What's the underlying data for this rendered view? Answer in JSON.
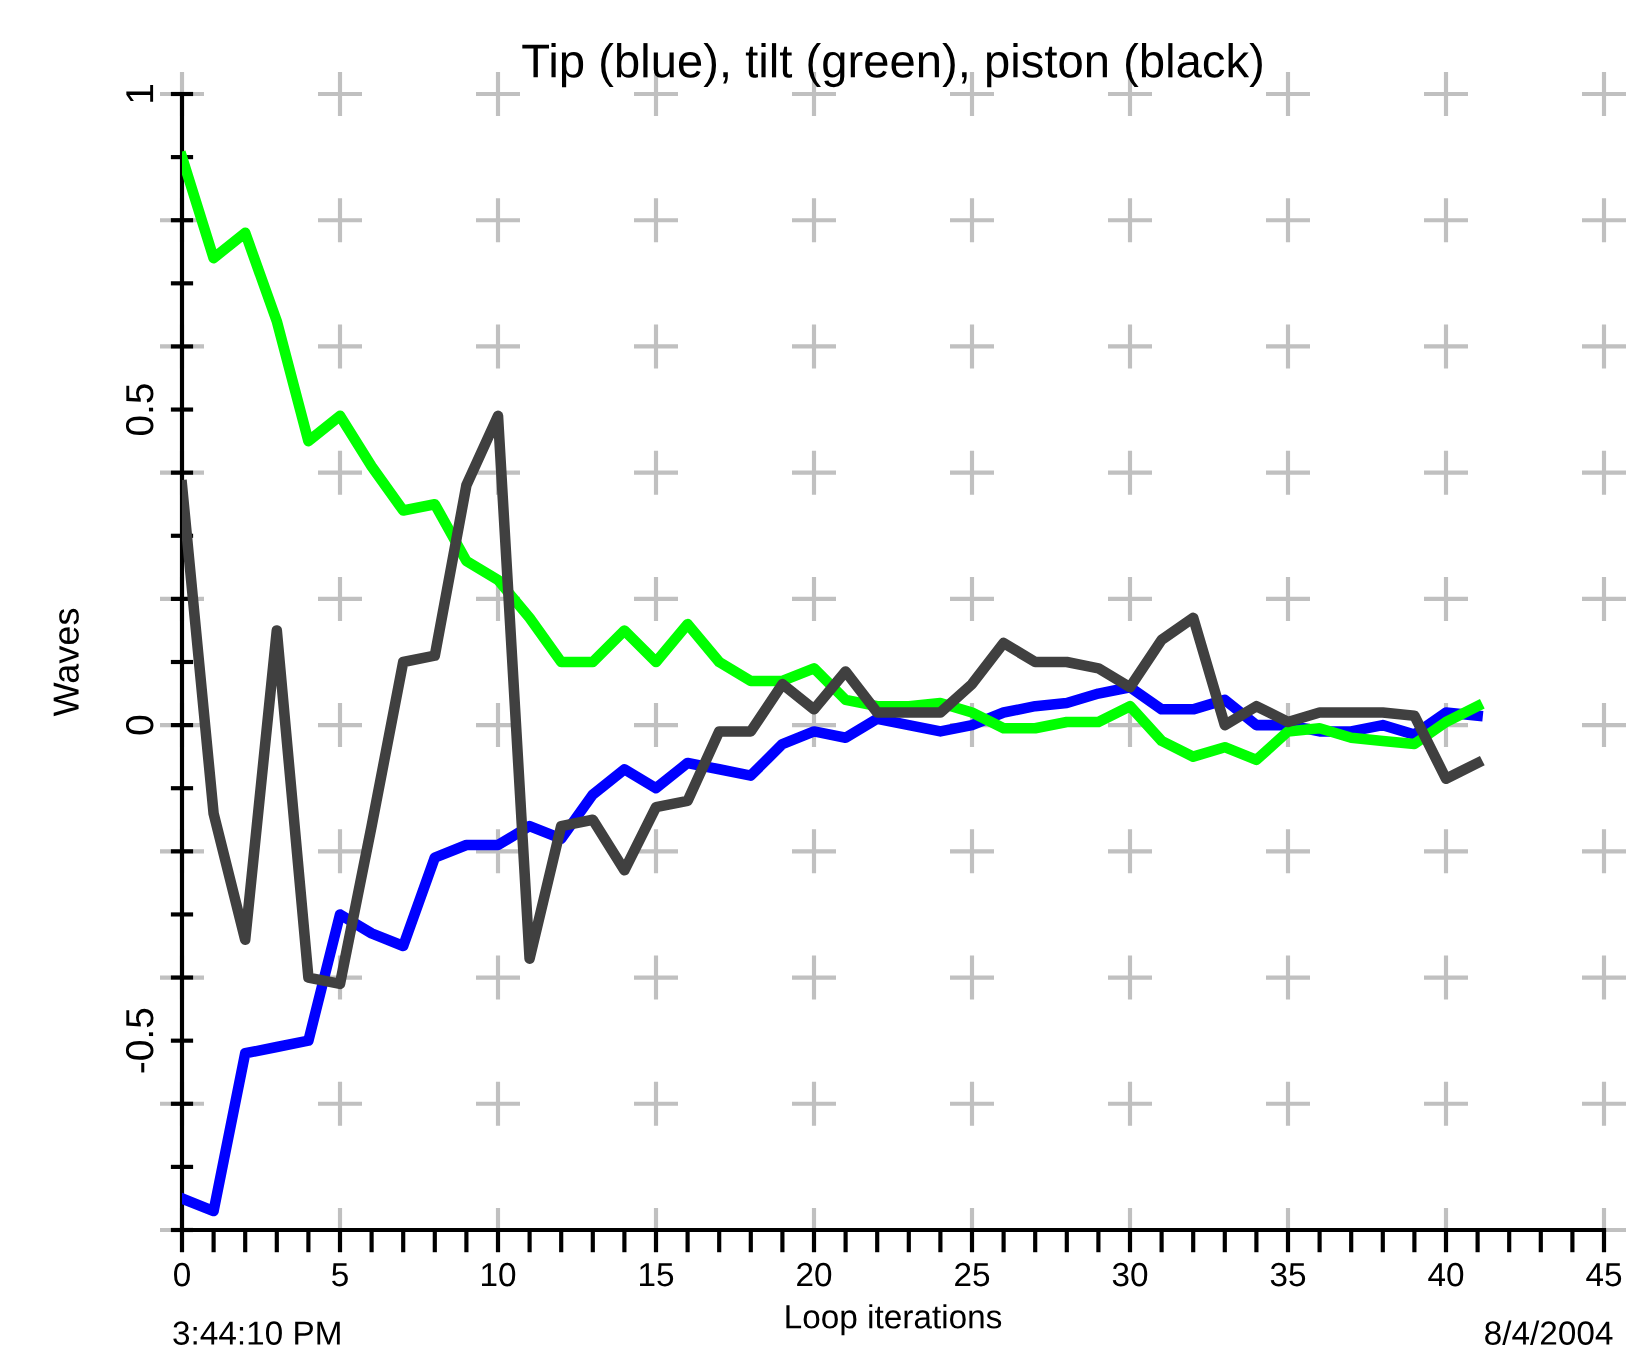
{
  "chart_data": {
    "type": "line",
    "title": "Tip (blue), tilt (green), piston (black)",
    "xlabel": "Loop iterations",
    "ylabel": "Waves",
    "annotations": [
      "3:44:10 PM",
      "8/4/2004"
    ],
    "x": [
      0,
      1,
      2,
      3,
      4,
      5,
      6,
      7,
      8,
      9,
      10,
      11,
      12,
      13,
      14,
      15,
      16,
      17,
      18,
      19,
      20,
      21,
      22,
      23,
      24,
      25,
      26,
      27,
      28,
      29,
      30,
      31,
      32,
      33,
      34,
      35,
      36,
      37,
      38,
      39,
      40,
      41
    ],
    "series": [
      {
        "color": "#0000ff",
        "values": [
          -0.75,
          -0.77,
          -0.52,
          -0.51,
          -0.5,
          -0.3,
          -0.33,
          -0.35,
          -0.21,
          -0.19,
          -0.19,
          -0.16,
          -0.18,
          -0.11,
          -0.07,
          -0.1,
          -0.06,
          -0.07,
          -0.08,
          -0.03,
          -0.01,
          -0.02,
          0.01,
          0.0,
          -0.01,
          0.0,
          0.02,
          0.03,
          0.035,
          0.05,
          0.06,
          0.025,
          0.025,
          0.04,
          0.0,
          0.0,
          -0.01,
          -0.01,
          0.0,
          -0.015,
          0.02,
          0.015
        ]
      },
      {
        "color": "#00ff00",
        "values": [
          0.9,
          0.74,
          0.78,
          0.64,
          0.45,
          0.49,
          0.41,
          0.34,
          0.35,
          0.26,
          0.23,
          0.17,
          0.1,
          0.1,
          0.15,
          0.1,
          0.16,
          0.1,
          0.07,
          0.07,
          0.09,
          0.04,
          0.03,
          0.03,
          0.035,
          0.02,
          -0.005,
          -0.005,
          0.005,
          0.005,
          0.03,
          -0.025,
          -0.05,
          -0.035,
          -0.055,
          -0.01,
          -0.005,
          -0.02,
          -0.025,
          -0.03,
          0.005,
          0.03
        ]
      },
      {
        "color": "#404040",
        "values": [
          0.38,
          -0.14,
          -0.34,
          0.15,
          -0.4,
          -0.41,
          -0.16,
          0.1,
          0.11,
          0.38,
          0.49,
          -0.37,
          -0.16,
          -0.15,
          -0.23,
          -0.13,
          -0.12,
          -0.01,
          -0.01,
          0.065,
          0.025,
          0.085,
          0.02,
          0.02,
          0.02,
          0.065,
          0.13,
          0.1,
          0.1,
          0.09,
          0.06,
          0.135,
          0.17,
          0.0,
          0.03,
          0.005,
          0.02,
          0.02,
          0.02,
          0.015,
          -0.085,
          -0.06
        ]
      }
    ],
    "xlim": [
      0,
      45
    ],
    "xticks": [
      0,
      {
        "value": 1,
        "label": null
      },
      {
        "value": 2,
        "label": null
      },
      {
        "value": 3,
        "label": null
      },
      {
        "value": 4,
        "label": null
      },
      5,
      {
        "value": 6,
        "label": null
      },
      {
        "value": 7,
        "label": null
      },
      {
        "value": 8,
        "label": null
      },
      {
        "value": 9,
        "label": null
      },
      10,
      {
        "value": 11,
        "label": null
      },
      {
        "value": 12,
        "label": null
      },
      {
        "value": 13,
        "label": null
      },
      {
        "value": 14,
        "label": null
      },
      15,
      {
        "value": 16,
        "label": null
      },
      {
        "value": 17,
        "label": null
      },
      {
        "value": 18,
        "label": null
      },
      {
        "value": 19,
        "label": null
      },
      20,
      {
        "value": 21,
        "label": null
      },
      {
        "value": 22,
        "label": null
      },
      {
        "value": 23,
        "label": null
      },
      {
        "value": 24,
        "label": null
      },
      25,
      {
        "value": 26,
        "label": null
      },
      {
        "value": 27,
        "label": null
      },
      {
        "value": 28,
        "label": null
      },
      {
        "value": 29,
        "label": null
      },
      30,
      {
        "value": 31,
        "label": null
      },
      {
        "value": 32,
        "label": null
      },
      {
        "value": 33,
        "label": null
      },
      {
        "value": 34,
        "label": null
      },
      35,
      {
        "value": 36,
        "label": null
      },
      {
        "value": 37,
        "label": null
      },
      {
        "value": 38,
        "label": null
      },
      {
        "value": 39,
        "label": null
      },
      40,
      {
        "value": 41,
        "label": null
      },
      {
        "value": 42,
        "label": null
      },
      {
        "value": 43,
        "label": null
      },
      {
        "value": 44,
        "label": null
      },
      45
    ],
    "ylim": [
      -0.8,
      1
    ],
    "yticks": [
      {
        "value": -0.8,
        "label": null
      },
      {
        "value": -0.7,
        "label": null
      },
      {
        "value": -0.6,
        "label": null
      },
      {
        "value": -0.5,
        "label": "-0.5"
      },
      {
        "value": -0.4,
        "label": null
      },
      {
        "value": -0.3,
        "label": null
      },
      {
        "value": -0.2,
        "label": null
      },
      {
        "value": -0.1,
        "label": null
      },
      0,
      {
        "value": 0.1,
        "label": null
      },
      {
        "value": 0.2,
        "label": null
      },
      {
        "value": 0.3,
        "label": null
      },
      {
        "value": 0.4,
        "label": null
      },
      0.5,
      {
        "value": 0.6,
        "label": null
      },
      {
        "value": 0.7,
        "label": null
      },
      {
        "value": 0.8,
        "label": null
      },
      {
        "value": 0.9,
        "label": null
      },
      1
    ],
    "grid": true,
    "marker": "none",
    "line_style": "solid"
  }
}
